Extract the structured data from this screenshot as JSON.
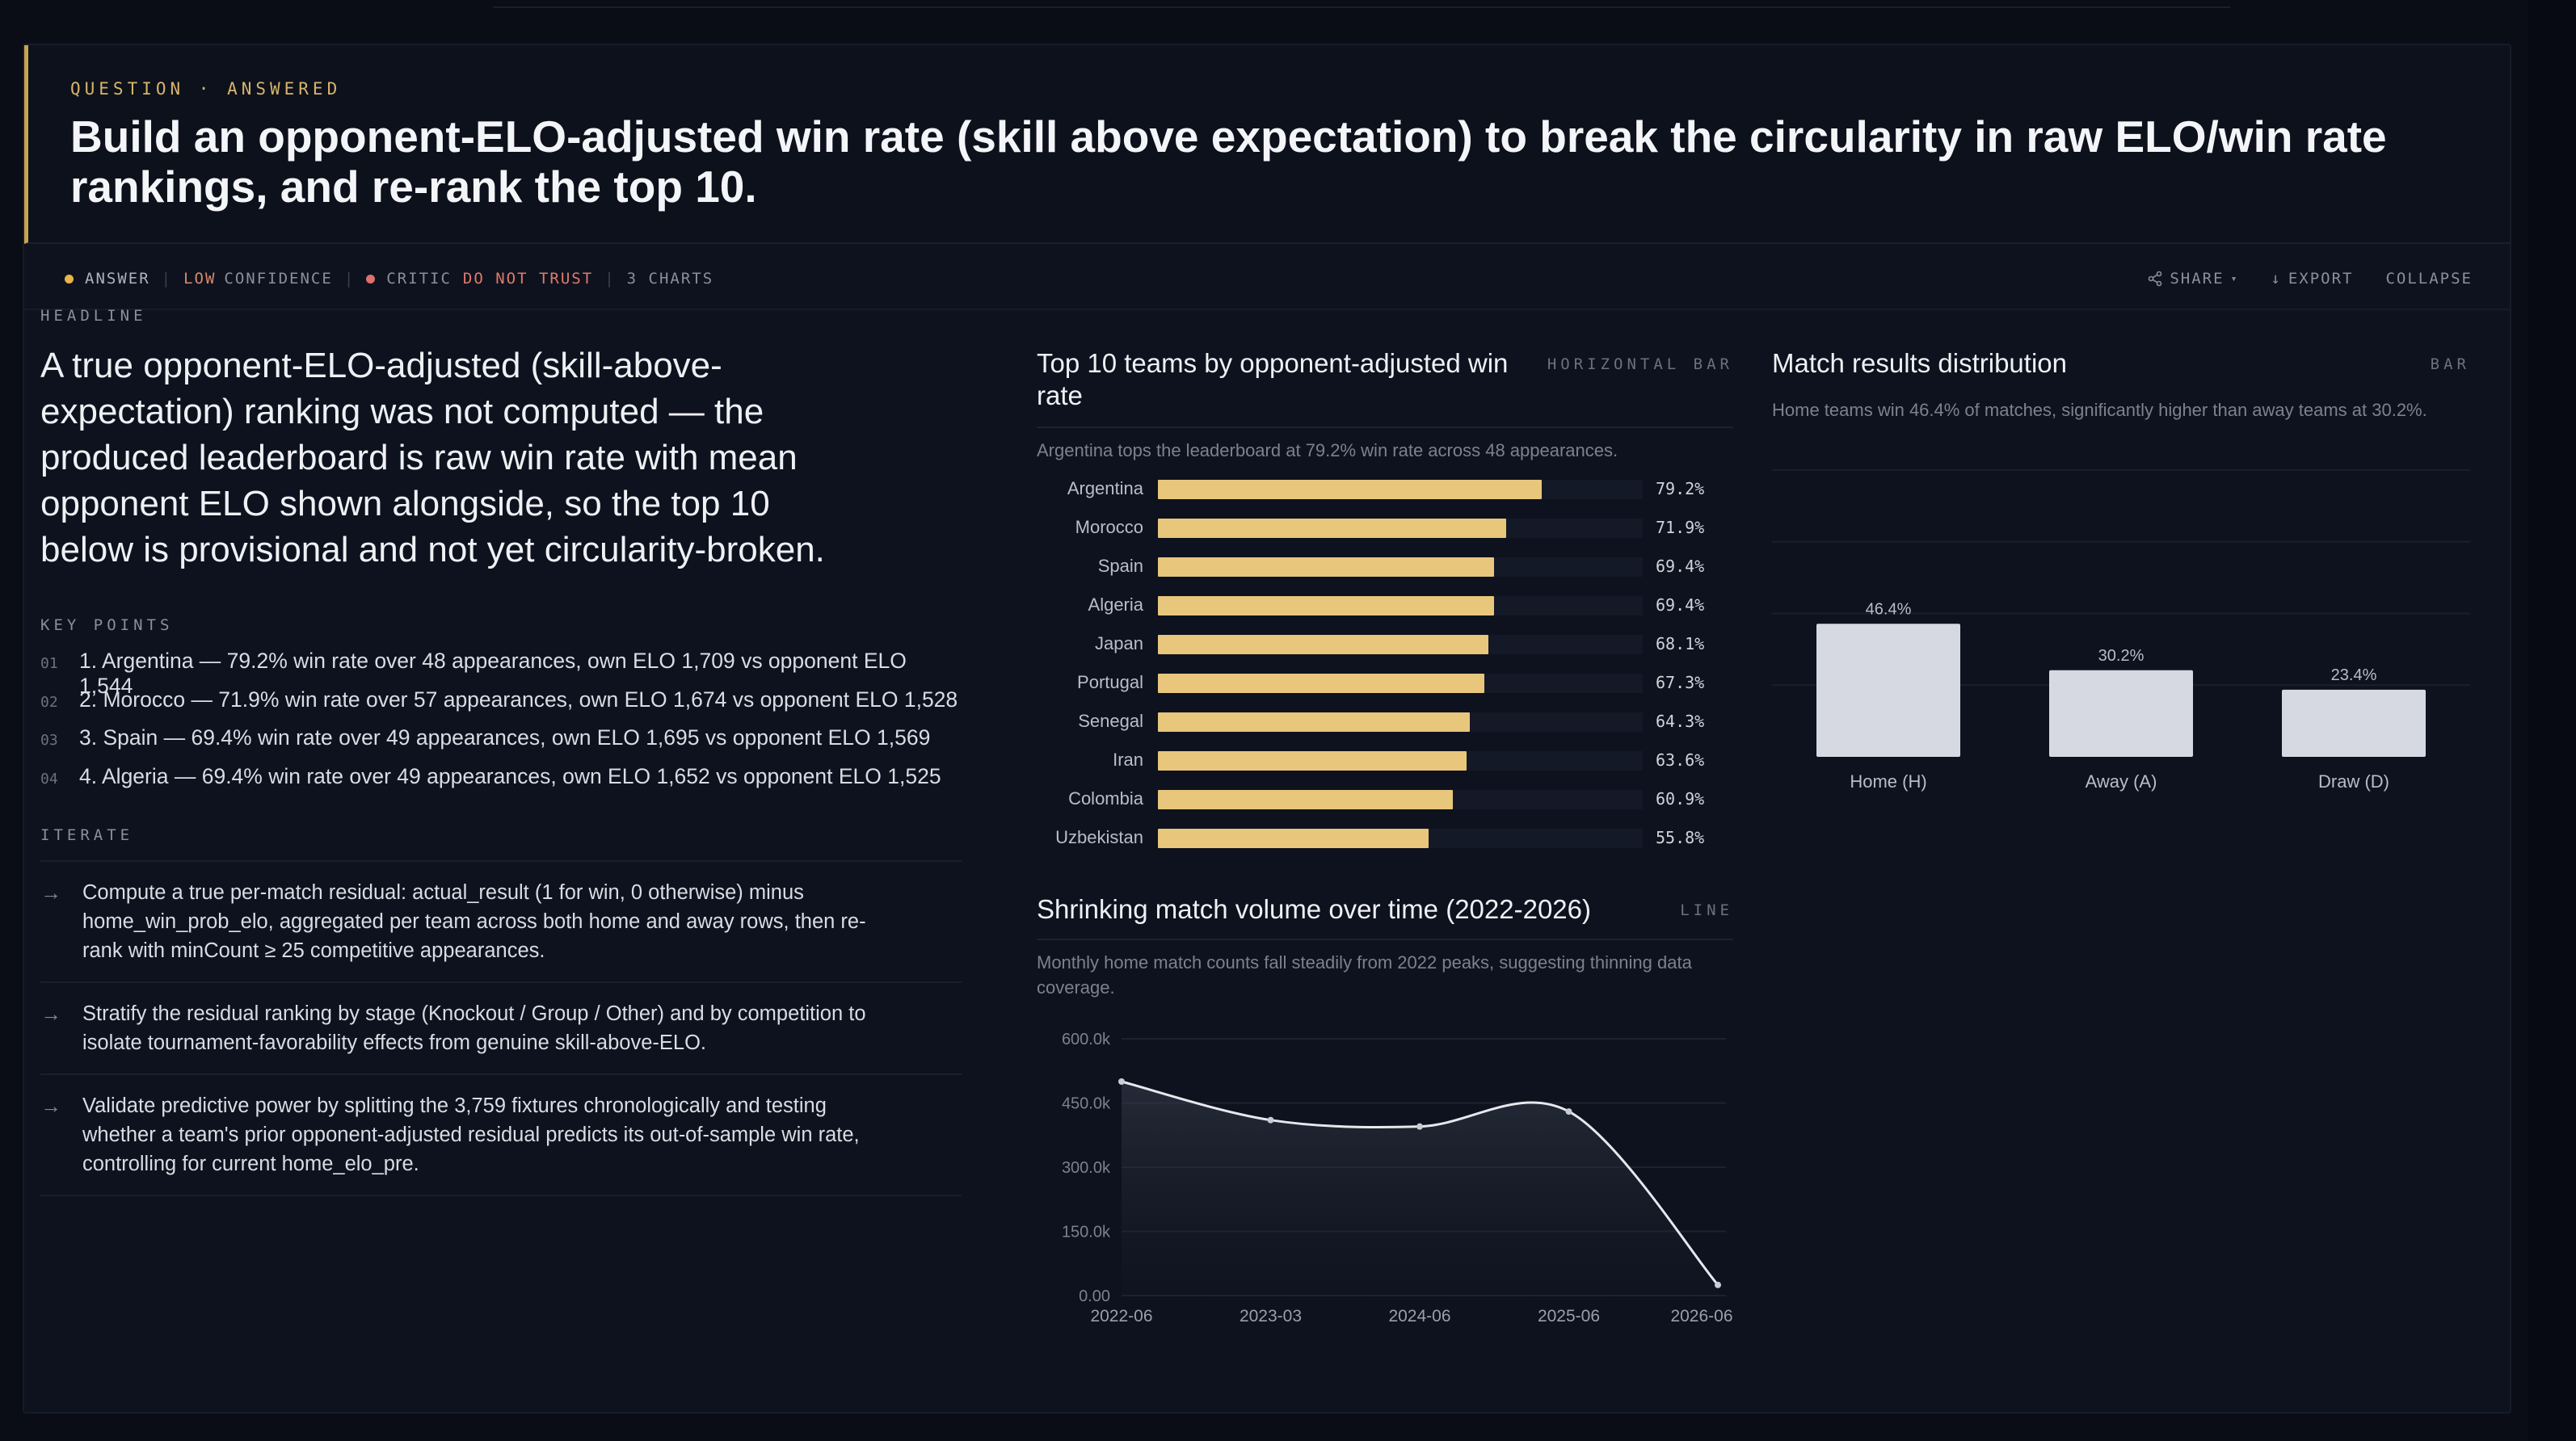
{
  "question": {
    "eyebrow": "QUESTION · ANSWERED",
    "title": "Build an opponent-ELO-adjusted win rate (skill above expectation) to break the circularity in raw ELO/win rate rankings, and re-rank the top 10."
  },
  "meta": {
    "answer": "ANSWER",
    "confidence_level": "LOW",
    "confidence_label": "CONFIDENCE",
    "critic_label": "CRITIC",
    "critic_verdict": "DO NOT TRUST",
    "charts": "3 CHARTS",
    "share": "SHARE",
    "export": "EXPORT",
    "collapse": "COLLAPSE",
    "colors": {
      "answer_dot": "#e8b54a",
      "critic_dot": "#e0706a",
      "warning": "#d98a6a",
      "critic_text": "#e07a6a"
    }
  },
  "headline": {
    "label": "HEADLINE",
    "text": "A true opponent-ELO-adjusted (skill-above-expectation) ranking was not computed — the produced leaderboard is raw win rate with mean opponent ELO shown alongside, so the top 10 below is provisional and not yet circularity-broken."
  },
  "key_points": {
    "label": "KEY POINTS",
    "items": [
      {
        "num": "01",
        "text": "1. Argentina — 79.2% win rate over 48 appearances, own ELO 1,709 vs opponent ELO 1,544"
      },
      {
        "num": "02",
        "text": "2. Morocco — 71.9% win rate over 57 appearances, own ELO 1,674 vs opponent ELO 1,528"
      },
      {
        "num": "03",
        "text": "3. Spain — 69.4% win rate over 49 appearances, own ELO 1,695 vs opponent ELO 1,569"
      },
      {
        "num": "04",
        "text": "4. Algeria — 69.4% win rate over 49 appearances, own ELO 1,652 vs opponent ELO 1,525"
      }
    ]
  },
  "iterate": {
    "label": "ITERATE",
    "items": [
      {
        "text": "Compute a true per-match residual: actual_result (1 for win, 0 otherwise) minus home_win_prob_elo, aggregated per team across both home and away rows, then re-rank with minCount ≥ 25 competitive appearances."
      },
      {
        "text": "Stratify the residual ranking by stage (Knockout / Group / Other) and by competition to isolate tournament-favorability effects from genuine skill-above-ELO."
      },
      {
        "text": "Validate predictive power by splitting the 3,759 fixtures chronologically and testing whether a team's prior opponent-adjusted residual predicts its out-of-sample win rate, controlling for current home_elo_pre."
      }
    ]
  },
  "panels": {
    "hbar": {
      "title": "Top 10 teams by opponent-adjusted win rate",
      "type": "HORIZONTAL BAR",
      "subtitle": "Argentina tops the leaderboard at 79.2% win rate across 48 appearances."
    },
    "line": {
      "title": "Shrinking match volume over time (2022-2026)",
      "type": "LINE",
      "subtitle": "Monthly home match counts fall steadily from 2022 peaks, suggesting thinning data coverage."
    },
    "bar": {
      "title": "Match results distribution",
      "type": "BAR",
      "subtitle": "Home teams win 46.4% of matches, significantly higher than away teams at 30.2%."
    }
  },
  "chart_data": [
    {
      "type": "bar",
      "orientation": "horizontal",
      "categories": [
        "Argentina",
        "Morocco",
        "Spain",
        "Algeria",
        "Japan",
        "Portugal",
        "Senegal",
        "Iran",
        "Colombia",
        "Uzbekistan"
      ],
      "values": [
        79.2,
        71.9,
        69.4,
        69.4,
        68.1,
        67.3,
        64.3,
        63.6,
        60.9,
        55.8
      ],
      "labels": [
        "79.2%",
        "71.9%",
        "69.4%",
        "69.4%",
        "68.1%",
        "67.3%",
        "64.3%",
        "63.6%",
        "60.9%",
        "55.8%"
      ],
      "xlim": [
        0,
        100
      ],
      "color": "#e8c67c"
    },
    {
      "type": "line",
      "x": [
        "2022-06",
        "2023-03",
        "2024-06",
        "2025-06",
        "2026-06"
      ],
      "y": [
        500000,
        410000,
        395000,
        430000,
        25000
      ],
      "ylim": [
        0,
        600000
      ],
      "yticks": [
        "0.00",
        "150.0k",
        "300.0k",
        "450.0k",
        "600.0k"
      ],
      "ytick_values": [
        0,
        150000,
        300000,
        450000,
        600000
      ],
      "grid": true,
      "color": "#e6e8ee"
    },
    {
      "type": "bar",
      "categories": [
        "Home (H)",
        "Away (A)",
        "Draw (D)"
      ],
      "values": [
        46.4,
        30.2,
        23.4
      ],
      "labels": [
        "46.4%",
        "30.2%",
        "23.4%"
      ],
      "ylim": [
        0,
        100
      ],
      "grid": true,
      "color": "#d6d8e2"
    }
  ]
}
